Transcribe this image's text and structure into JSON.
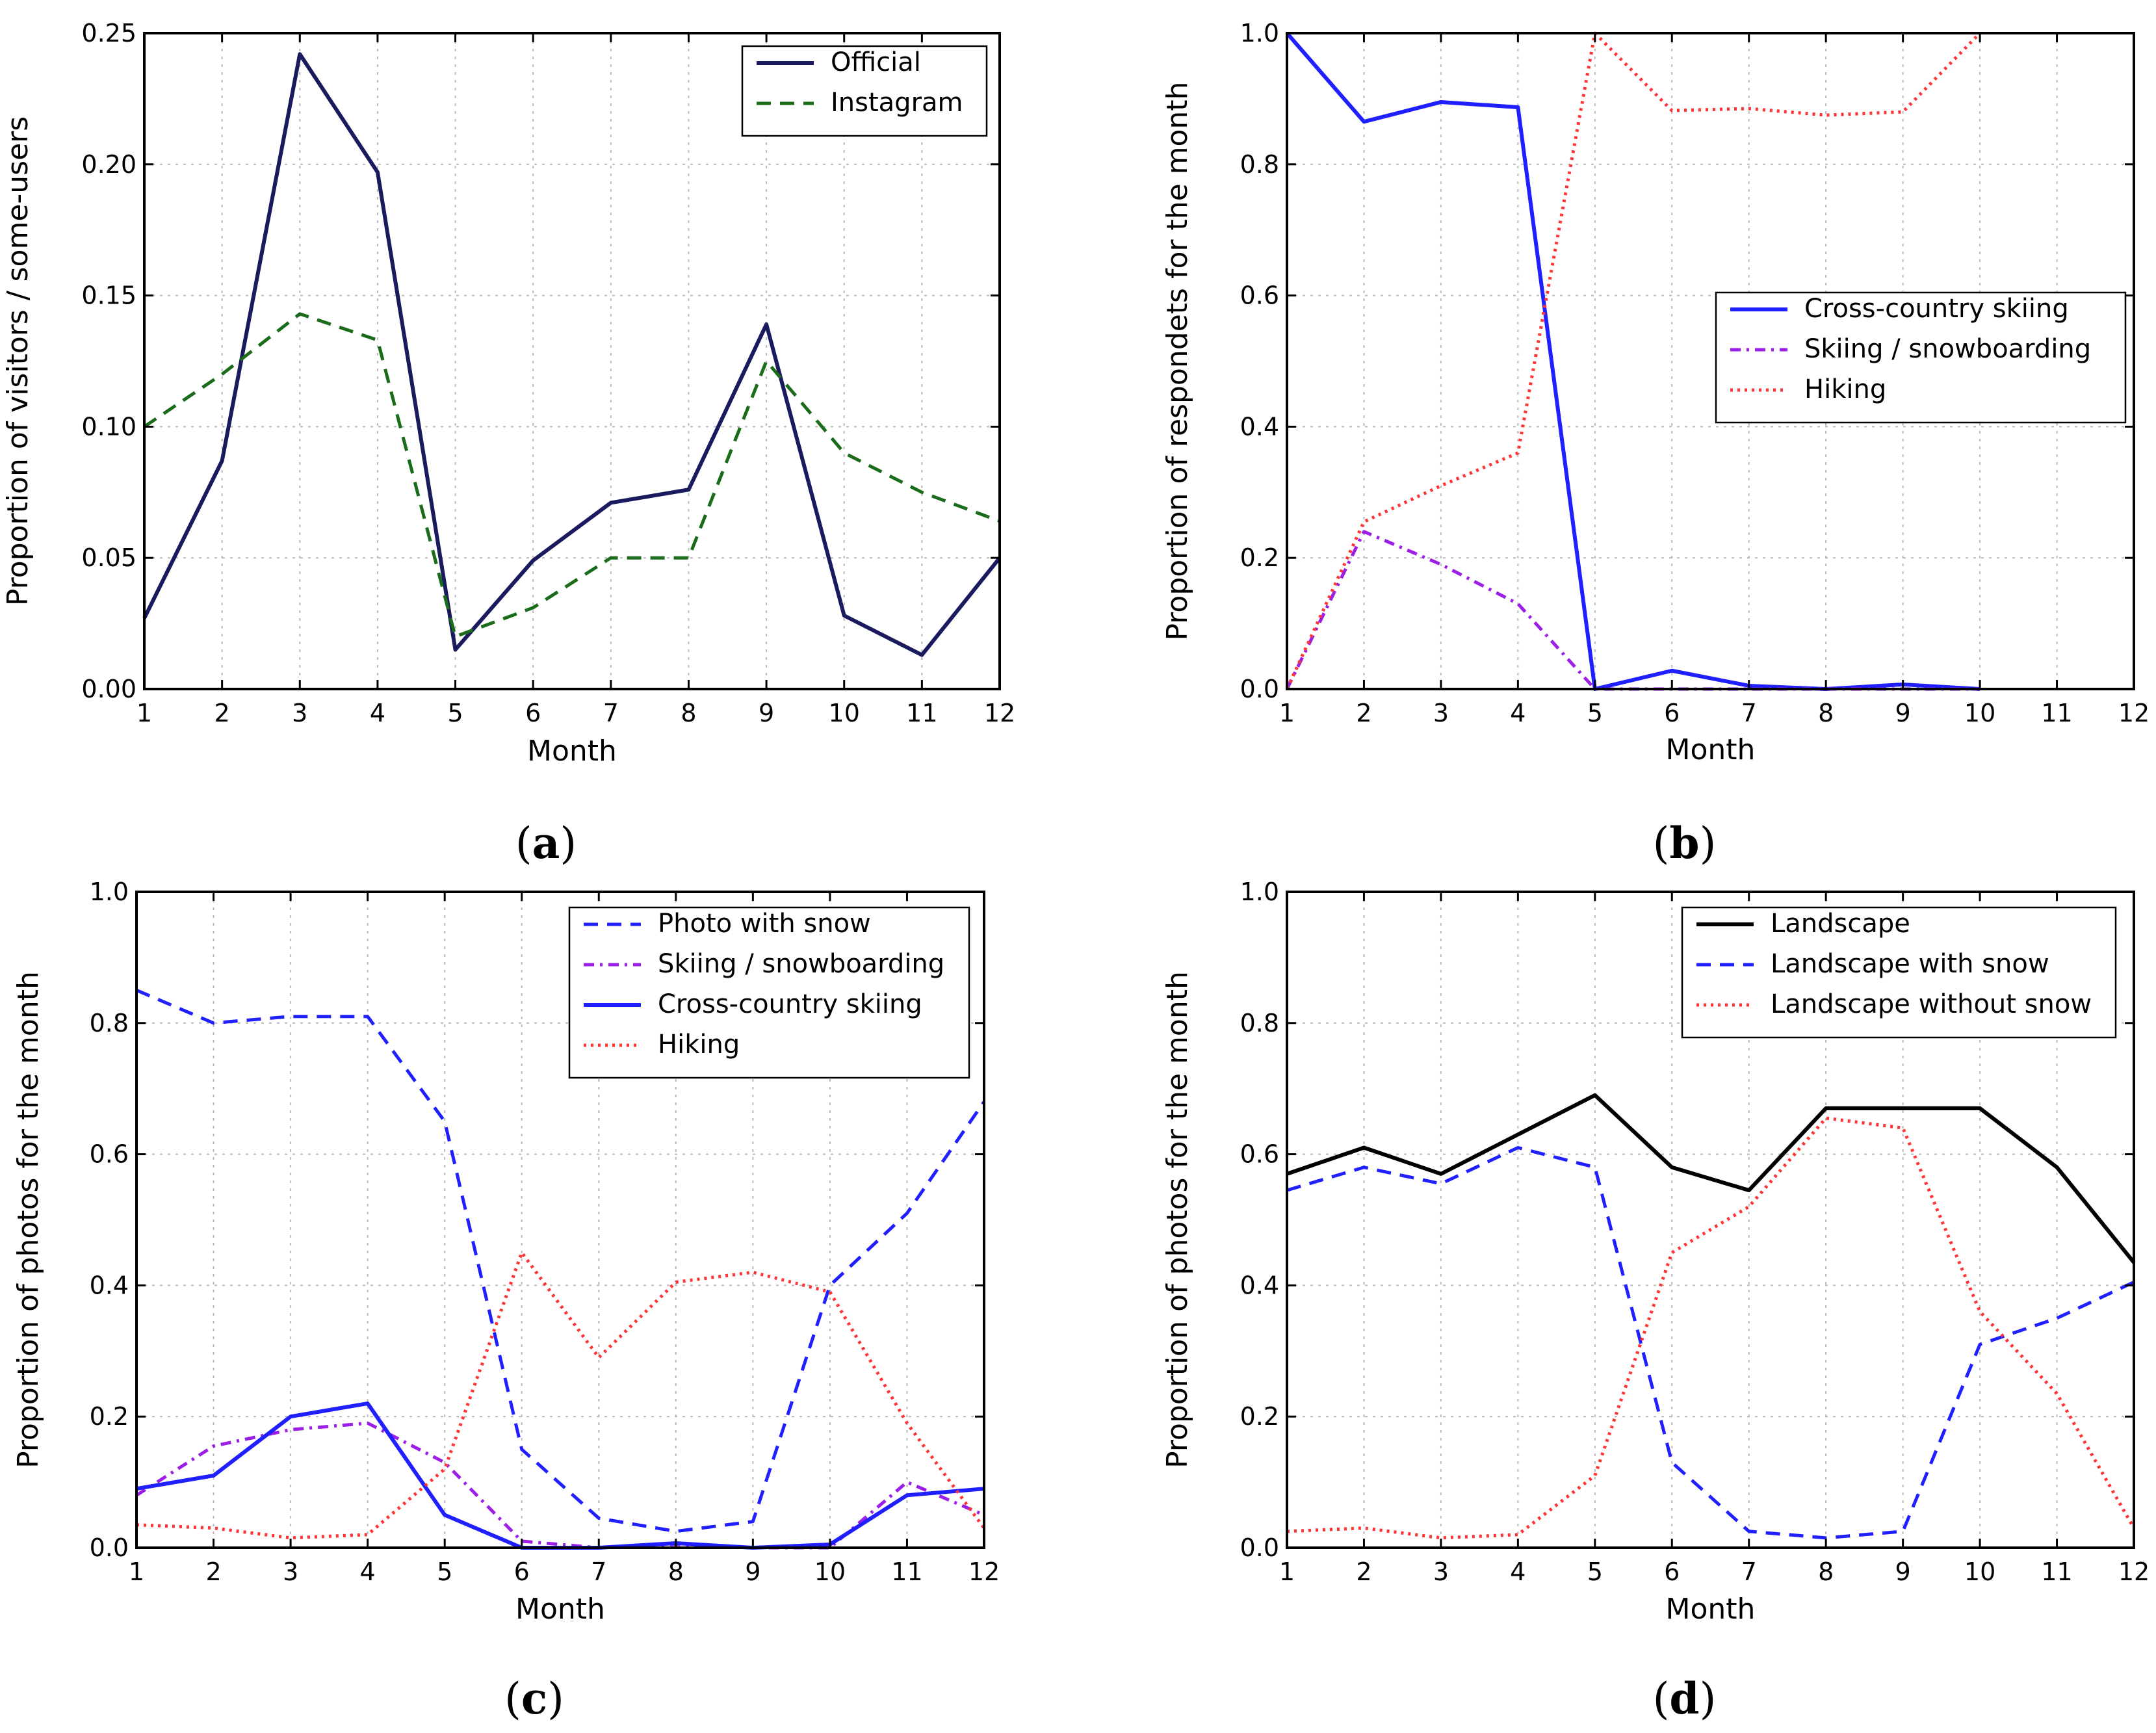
{
  "chart_data": [
    {
      "type": "line",
      "panel": "a",
      "caption": "a",
      "xlabel": "Month",
      "ylabel": "Proportion of visitors / some-users",
      "xlim": [
        1,
        12
      ],
      "ylim": [
        0,
        0.25
      ],
      "xticks": [
        "1",
        "2",
        "3",
        "4",
        "5",
        "6",
        "7",
        "8",
        "9",
        "10",
        "11",
        "12"
      ],
      "yticks": [
        "0.00",
        "0.05",
        "0.10",
        "0.15",
        "0.20",
        "0.25"
      ],
      "legend_position": "top-right",
      "grid": true,
      "x": [
        1,
        2,
        3,
        4,
        5,
        6,
        7,
        8,
        9,
        10,
        11,
        12
      ],
      "series": [
        {
          "name": "Official",
          "color": "#1a1a5e",
          "style": "solid",
          "values": [
            0.027,
            0.087,
            0.242,
            0.197,
            0.015,
            0.049,
            0.071,
            0.076,
            0.139,
            0.028,
            0.013,
            0.05
          ]
        },
        {
          "name": "Instagram",
          "color": "#1a6b1a",
          "style": "dashed",
          "values": [
            0.1,
            0.12,
            0.143,
            0.133,
            0.02,
            0.031,
            0.05,
            0.05,
            0.125,
            0.09,
            0.075,
            0.064
          ]
        }
      ]
    },
    {
      "type": "line",
      "panel": "b",
      "caption": "b",
      "xlabel": "Month",
      "ylabel": "Proportion of respondets for the month",
      "xlim": [
        1,
        12
      ],
      "ylim": [
        0,
        1.0
      ],
      "xticks": [
        "1",
        "2",
        "3",
        "4",
        "5",
        "6",
        "7",
        "8",
        "9",
        "10",
        "11",
        "12"
      ],
      "yticks": [
        "0.0",
        "0.2",
        "0.4",
        "0.6",
        "0.8",
        "1.0"
      ],
      "legend_position": "center-right",
      "grid": true,
      "x": [
        1,
        2,
        3,
        4,
        5,
        6,
        7,
        8,
        9,
        10
      ],
      "series": [
        {
          "name": "Cross-country skiing",
          "color": "#1f1fff",
          "style": "solid",
          "values": [
            1.0,
            0.865,
            0.895,
            0.887,
            0.0,
            0.028,
            0.005,
            0.0,
            0.007,
            0.0
          ]
        },
        {
          "name": "Skiing / snowboarding",
          "color": "#9b1fe8",
          "style": "dashdot",
          "values": [
            0.0,
            0.24,
            0.19,
            0.13,
            0.0,
            0.0,
            0.0,
            0.0,
            0.0,
            0.0
          ]
        },
        {
          "name": "Hiking",
          "color": "#ff3333",
          "style": "dotted",
          "values": [
            0.0,
            0.255,
            0.31,
            0.36,
            1.0,
            0.882,
            0.885,
            0.875,
            0.88,
            1.0
          ]
        }
      ]
    },
    {
      "type": "line",
      "panel": "c",
      "caption": "c",
      "xlabel": "Month",
      "ylabel": "Proportion of photos for the month",
      "xlim": [
        1,
        12
      ],
      "ylim": [
        0,
        1.0
      ],
      "xticks": [
        "1",
        "2",
        "3",
        "4",
        "5",
        "6",
        "7",
        "8",
        "9",
        "10",
        "11",
        "12"
      ],
      "yticks": [
        "0.0",
        "0.2",
        "0.4",
        "0.6",
        "0.8",
        "1.0"
      ],
      "legend_position": "top-right",
      "grid": true,
      "x": [
        1,
        2,
        3,
        4,
        5,
        6,
        7,
        8,
        9,
        10,
        11,
        12
      ],
      "series": [
        {
          "name": "Photo with snow",
          "color": "#1f1fff",
          "style": "dashed",
          "values": [
            0.85,
            0.8,
            0.81,
            0.81,
            0.65,
            0.15,
            0.045,
            0.025,
            0.04,
            0.4,
            0.51,
            0.68
          ]
        },
        {
          "name": "Skiing / snowboarding",
          "color": "#9b1fe8",
          "style": "dashdot",
          "values": [
            0.08,
            0.155,
            0.18,
            0.19,
            0.13,
            0.01,
            0.0,
            0.005,
            0.0,
            0.0,
            0.1,
            0.05
          ]
        },
        {
          "name": "Cross-country skiing",
          "color": "#1f1fff",
          "style": "solid",
          "values": [
            0.09,
            0.11,
            0.2,
            0.22,
            0.05,
            0.0,
            0.0,
            0.007,
            0.0,
            0.005,
            0.08,
            0.09
          ]
        },
        {
          "name": "Hiking",
          "color": "#ff3333",
          "style": "dotted",
          "values": [
            0.035,
            0.03,
            0.015,
            0.02,
            0.12,
            0.45,
            0.29,
            0.405,
            0.42,
            0.39,
            0.19,
            0.03
          ]
        }
      ]
    },
    {
      "type": "line",
      "panel": "d",
      "caption": "d",
      "xlabel": "Month",
      "ylabel": "Proportion of photos for the month",
      "xlim": [
        1,
        12
      ],
      "ylim": [
        0,
        1.0
      ],
      "xticks": [
        "1",
        "2",
        "3",
        "4",
        "5",
        "6",
        "7",
        "8",
        "9",
        "10",
        "11",
        "12"
      ],
      "yticks": [
        "0.0",
        "0.2",
        "0.4",
        "0.6",
        "0.8",
        "1.0"
      ],
      "legend_position": "top-right",
      "grid": true,
      "x": [
        1,
        2,
        3,
        4,
        5,
        6,
        7,
        8,
        9,
        10,
        11,
        12
      ],
      "series": [
        {
          "name": "Landscape",
          "color": "#000000",
          "style": "solid",
          "values": [
            0.57,
            0.61,
            0.57,
            0.63,
            0.69,
            0.58,
            0.545,
            0.67,
            0.67,
            0.67,
            0.58,
            0.435
          ]
        },
        {
          "name": "Landscape with snow",
          "color": "#1f1fff",
          "style": "dashed",
          "values": [
            0.545,
            0.58,
            0.555,
            0.61,
            0.58,
            0.13,
            0.025,
            0.015,
            0.025,
            0.31,
            0.35,
            0.405
          ]
        },
        {
          "name": "Landscape without snow",
          "color": "#ff3333",
          "style": "dotted",
          "values": [
            0.025,
            0.03,
            0.015,
            0.02,
            0.11,
            0.45,
            0.52,
            0.655,
            0.64,
            0.36,
            0.235,
            0.03
          ]
        }
      ]
    }
  ]
}
